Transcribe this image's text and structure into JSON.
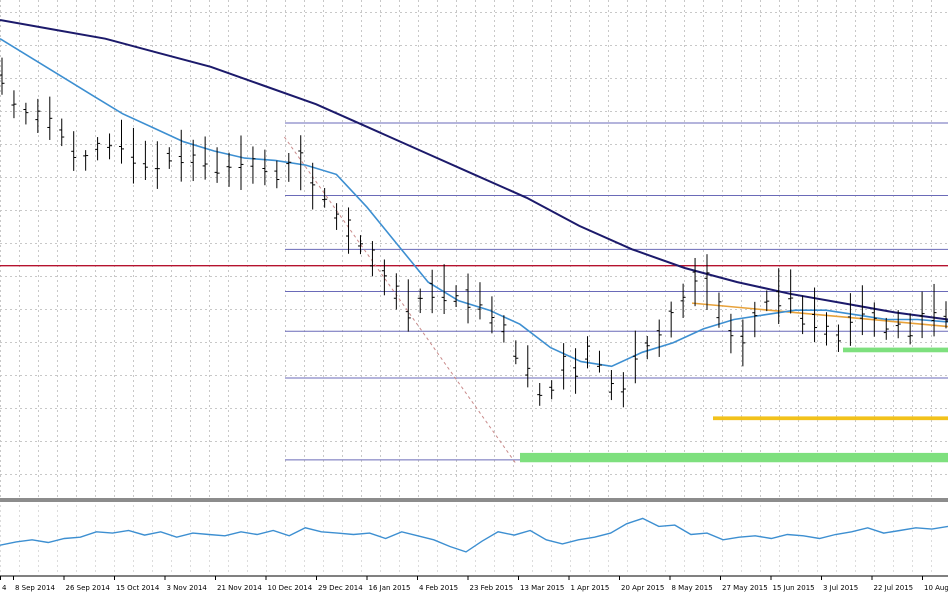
{
  "chart_data": {
    "type": "line",
    "title": "",
    "xlabel": "",
    "ylabel": "",
    "grid": true,
    "x_tick_labels": [
      "4",
      "8 Sep 2014",
      "26 Sep 2014",
      "15 Oct 2014",
      "3 Nov 2014",
      "21 Nov 2014",
      "10 Dec 2014",
      "29 Dec 2014",
      "16 Jan 2015",
      "4 Feb 2015",
      "23 Feb 2015",
      "13 Mar 2015",
      "1 Apr 2015",
      "20 Apr 2015",
      "8 May 2015",
      "27 May 2015",
      "15 Jun 2015",
      "3 Jul 2015",
      "22 Jul 2015",
      "10 Aug"
    ],
    "price_series": {
      "name": "",
      "values": [
        88,
        82,
        80,
        79.5,
        79,
        76,
        72,
        70,
        72.5,
        73,
        74,
        71,
        70,
        69,
        70.5,
        71,
        70,
        70.5,
        69,
        68,
        69.5,
        69,
        68.5,
        67,
        68.5,
        69.5,
        64.5,
        62,
        58,
        55,
        52,
        49,
        45,
        42,
        39,
        40,
        42,
        42.5,
        41,
        40.5,
        40,
        37,
        34,
        29,
        26,
        20,
        21,
        26,
        25,
        29,
        27,
        22,
        21,
        28,
        30,
        32,
        36,
        40,
        44,
        44,
        38,
        33,
        31,
        36,
        40,
        41,
        42,
        37,
        37,
        34,
        32,
        36,
        38,
        36,
        34,
        35,
        34,
        37,
        38,
        37
      ]
    },
    "moving_averages": [
      {
        "name": "",
        "color": "#3d8fd1",
        "values": [
          96,
          92,
          88,
          84,
          80,
          77,
          74,
          72,
          70.5,
          70,
          69,
          67,
          60,
          52,
          44,
          40,
          38,
          35,
          30,
          27,
          26,
          29,
          31,
          34,
          36,
          37,
          38,
          38,
          37,
          36,
          36,
          35.5
        ]
      },
      {
        "name": "",
        "color": "#1c1a6b",
        "values": [
          100,
          98,
          96,
          93,
          90,
          86,
          82,
          77,
          72,
          67,
          62,
          56,
          51,
          47,
          44,
          41.5,
          39.5,
          37.5,
          36
        ]
      }
    ],
    "horizontal_levels": [
      {
        "value": 78,
        "color": "#6a6ab8"
      },
      {
        "value": 62.5,
        "color": "#6a6ab8"
      },
      {
        "value": 51,
        "color": "#6a6ab8"
      },
      {
        "value": 47.5,
        "color": "#b5122e"
      },
      {
        "value": 42,
        "color": "#6a6ab8"
      },
      {
        "value": 33.5,
        "color": "#6a6ab8"
      },
      {
        "value": 23.5,
        "color": "#6a6ab8"
      },
      {
        "value": 6,
        "color": "#6a6ab8"
      }
    ],
    "zones": [
      {
        "color": "#7ee07e",
        "low": 5.5,
        "high": 7.5
      },
      {
        "color": "#f2c21b",
        "low": 14.5,
        "high": 15.3
      },
      {
        "color": "#7ee07e",
        "low": 29,
        "high": 30
      }
    ],
    "trendlines": [
      {
        "color": "#e8a23a",
        "from": [
          0.73,
          39.5
        ],
        "to": [
          1.0,
          34.5
        ]
      },
      {
        "color": "#c98a8a",
        "dashed": true,
        "from": [
          0.3,
          75
        ],
        "to": [
          0.545,
          5
        ]
      }
    ],
    "oscillator": {
      "name": "",
      "color": "#3d8fd1",
      "values": [
        40,
        45,
        48,
        44,
        50,
        52,
        60,
        58,
        62,
        55,
        60,
        52,
        58,
        56,
        54,
        60,
        56,
        62,
        54,
        66,
        60,
        58,
        56,
        58,
        50,
        60,
        54,
        48,
        38,
        30,
        46,
        60,
        55,
        62,
        48,
        42,
        48,
        52,
        58,
        72,
        80,
        68,
        70,
        56,
        58,
        48,
        52,
        54,
        50,
        56,
        54,
        50,
        56,
        60,
        66,
        58,
        62,
        66,
        64,
        68
      ]
    }
  }
}
